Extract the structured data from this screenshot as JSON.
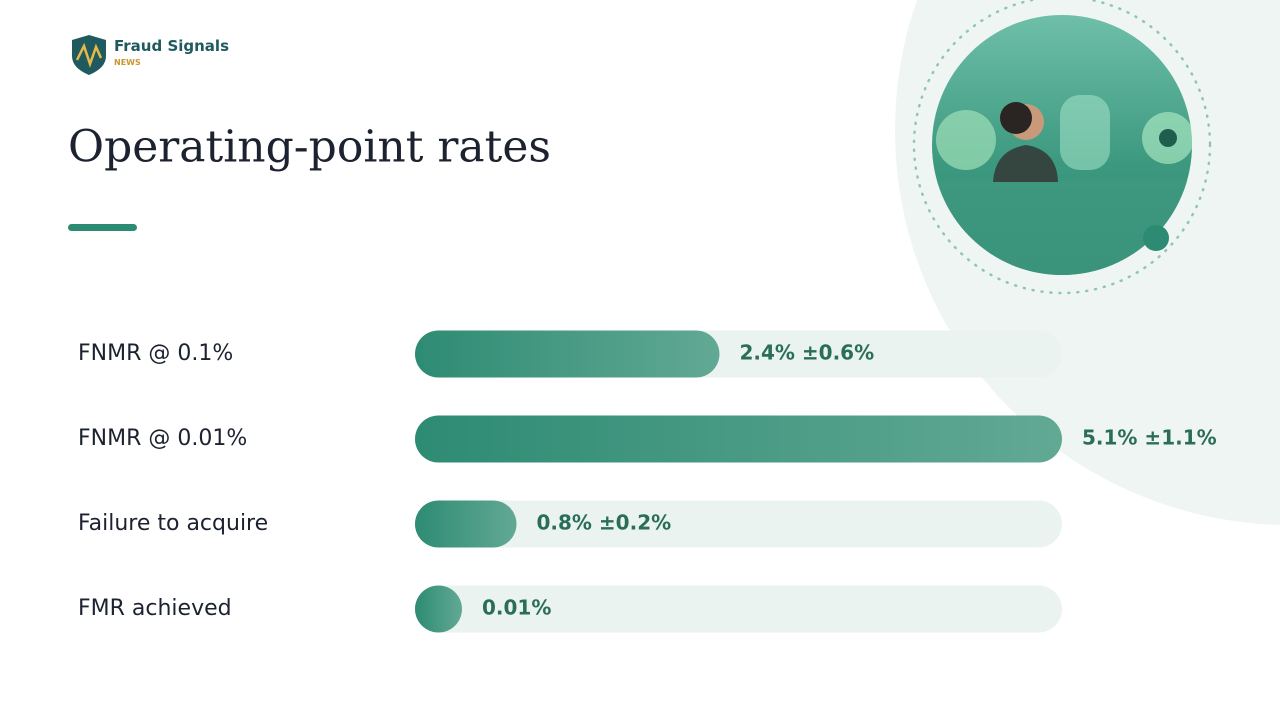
{
  "header": {
    "brand": "Fraud Signals",
    "brand_sub": "NEWS"
  },
  "chart_data": {
    "type": "bar",
    "orientation": "horizontal",
    "title": "Operating-point rates",
    "categories": [
      "FNMR @ 0.1%",
      "FNMR @ 0.01%",
      "Failure to acquire",
      "FMR achieved"
    ],
    "values": [
      2.4,
      5.1,
      0.8,
      0.01
    ],
    "errors": [
      0.6,
      1.1,
      0.2,
      null
    ],
    "value_labels": [
      "2.4% ±0.6%",
      "5.1% ±1.1%",
      "0.8% ±0.2%",
      "0.01%"
    ],
    "color": "#2e8b73",
    "xlim": [
      0,
      5.1
    ]
  }
}
